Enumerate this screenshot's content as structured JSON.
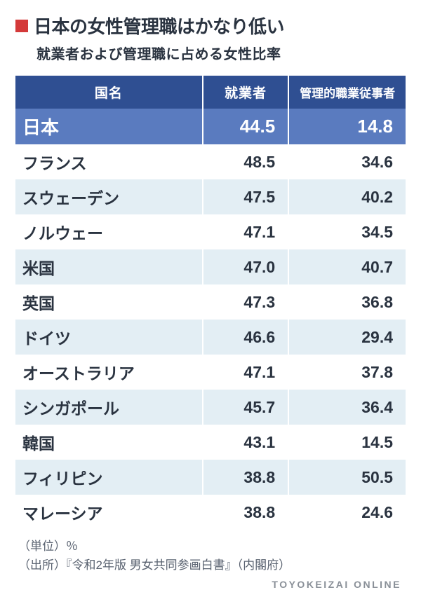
{
  "header": {
    "marker_color": "#d43a3a",
    "title": "日本の女性管理職はかなり低い",
    "subtitle": "就業者および管理職に占める女性比率"
  },
  "table": {
    "type": "table",
    "header_bg": "#2f4f92",
    "header_fg": "#ffffff",
    "highlight_bg": "#5a7bbf",
    "highlight_fg": "#ffffff",
    "row_even_bg": "#ffffff",
    "row_odd_bg": "#e3eef4",
    "border_color": "#ffffff",
    "columns": [
      {
        "label": "国名",
        "align": "left"
      },
      {
        "label": "就業者",
        "align": "right"
      },
      {
        "label": "管理的職業従事者",
        "align": "right"
      }
    ],
    "rows": [
      {
        "country": "日本",
        "workers": "44.5",
        "managers": "14.8",
        "highlight": true
      },
      {
        "country": "フランス",
        "workers": "48.5",
        "managers": "34.6"
      },
      {
        "country": "スウェーデン",
        "workers": "47.5",
        "managers": "40.2"
      },
      {
        "country": "ノルウェー",
        "workers": "47.1",
        "managers": "34.5"
      },
      {
        "country": "米国",
        "workers": "47.0",
        "managers": "40.7"
      },
      {
        "country": "英国",
        "workers": "47.3",
        "managers": "36.8"
      },
      {
        "country": "ドイツ",
        "workers": "46.6",
        "managers": "29.4"
      },
      {
        "country": "オーストラリア",
        "workers": "47.1",
        "managers": "37.8"
      },
      {
        "country": "シンガポール",
        "workers": "45.7",
        "managers": "36.4"
      },
      {
        "country": "韓国",
        "workers": "43.1",
        "managers": "14.5"
      },
      {
        "country": "フィリピン",
        "workers": "38.8",
        "managers": "50.5"
      },
      {
        "country": "マレーシア",
        "workers": "38.8",
        "managers": "24.6"
      }
    ]
  },
  "footnotes": {
    "unit": "（単位）％",
    "source": "（出所）『令和2年版 男女共同参画白書』（内閣府）"
  },
  "brand": "TOYOKEIZAI ONLINE"
}
